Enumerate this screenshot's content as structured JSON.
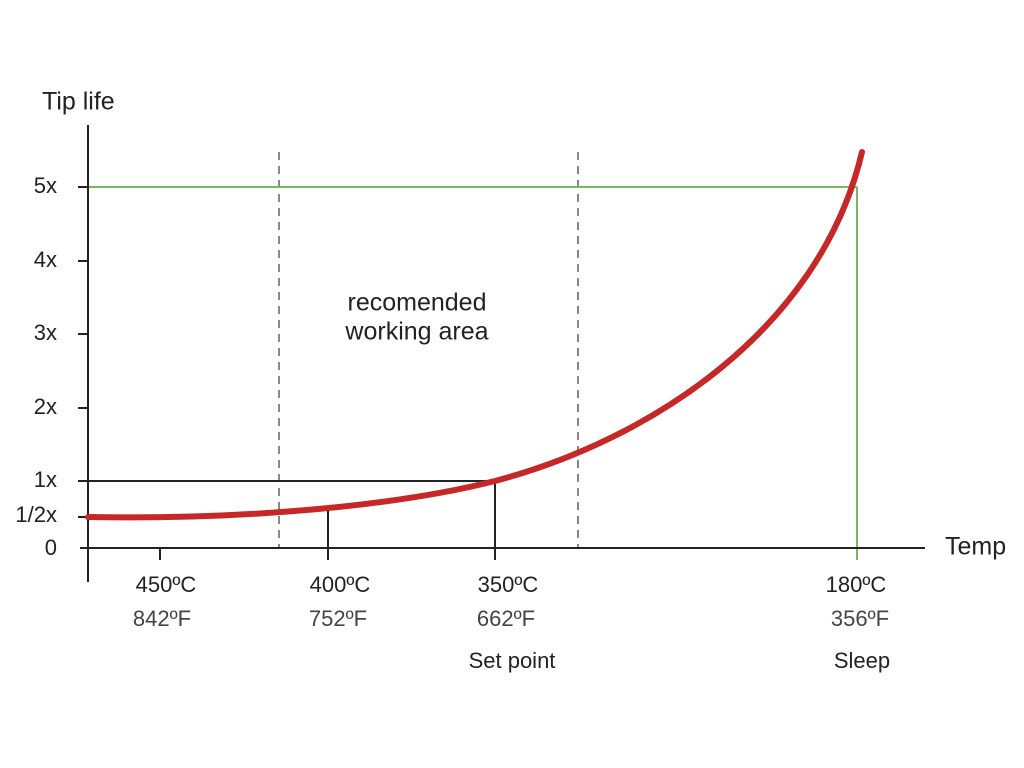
{
  "y_axis": {
    "title": "Tip life",
    "ticks": [
      "5x",
      "4x",
      "3x",
      "2x",
      "1x",
      "1/2x",
      "0"
    ]
  },
  "x_axis": {
    "title": "Temp",
    "ticks": [
      {
        "celsius": "450ºC",
        "fahrenheit": "842ºF"
      },
      {
        "celsius": "400ºC",
        "fahrenheit": "752ºF"
      },
      {
        "celsius": "350ºC",
        "fahrenheit": "662ºF",
        "note": "Set point"
      },
      {
        "celsius": "180ºC",
        "fahrenheit": "356ºF",
        "note": "Sleep"
      }
    ]
  },
  "annotation": [
    "recomended",
    "working area"
  ]
}
